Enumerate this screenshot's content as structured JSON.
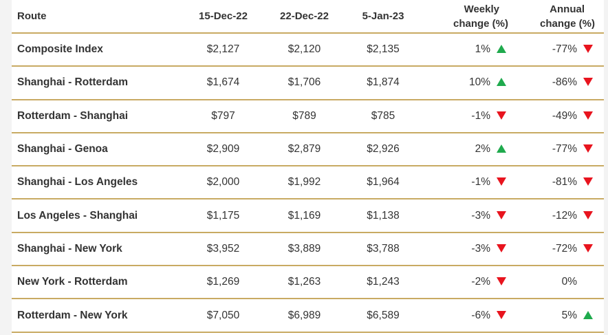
{
  "colors": {
    "rule": "#c8aa62",
    "up": "#1faa4d",
    "down": "#e8141e",
    "text": "#333333"
  },
  "headers": {
    "route": "Route",
    "d1": "15-Dec-22",
    "d2": "22-Dec-22",
    "d3": "5-Jan-23",
    "weekly_line1": "Weekly",
    "weekly_line2": "change (%)",
    "annual_line1": "Annual",
    "annual_line2": "change (%)"
  },
  "rows": [
    {
      "route": "Composite Index",
      "d1": "$2,127",
      "d2": "$2,120",
      "d3": "$2,135",
      "weekly": "1%",
      "weekly_dir": "up",
      "annual": "-77%",
      "annual_dir": "down"
    },
    {
      "route": "Shanghai - Rotterdam",
      "d1": "$1,674",
      "d2": "$1,706",
      "d3": "$1,874",
      "weekly": "10%",
      "weekly_dir": "up",
      "annual": "-86%",
      "annual_dir": "down"
    },
    {
      "route": "Rotterdam - Shanghai",
      "d1": "$797",
      "d2": "$789",
      "d3": "$785",
      "weekly": "-1%",
      "weekly_dir": "down",
      "annual": "-49%",
      "annual_dir": "down"
    },
    {
      "route": "Shanghai - Genoa",
      "d1": "$2,909",
      "d2": "$2,879",
      "d3": "$2,926",
      "weekly": "2%",
      "weekly_dir": "up",
      "annual": "-77%",
      "annual_dir": "down"
    },
    {
      "route": "Shanghai - Los Angeles",
      "d1": "$2,000",
      "d2": "$1,992",
      "d3": "$1,964",
      "weekly": "-1%",
      "weekly_dir": "down",
      "annual": "-81%",
      "annual_dir": "down"
    },
    {
      "route": "Los Angeles - Shanghai",
      "d1": "$1,175",
      "d2": "$1,169",
      "d3": "$1,138",
      "weekly": "-3%",
      "weekly_dir": "down",
      "annual": "-12%",
      "annual_dir": "down"
    },
    {
      "route": "Shanghai - New York",
      "d1": "$3,952",
      "d2": "$3,889",
      "d3": "$3,788",
      "weekly": "-3%",
      "weekly_dir": "down",
      "annual": "-72%",
      "annual_dir": "down"
    },
    {
      "route": "New York - Rotterdam",
      "d1": "$1,269",
      "d2": "$1,263",
      "d3": "$1,243",
      "weekly": "-2%",
      "weekly_dir": "down",
      "annual": "0%",
      "annual_dir": "none"
    },
    {
      "route": "Rotterdam - New York",
      "d1": "$7,050",
      "d2": "$6,989",
      "d3": "$6,589",
      "weekly": "-6%",
      "weekly_dir": "down",
      "annual": "5%",
      "annual_dir": "up"
    }
  ]
}
